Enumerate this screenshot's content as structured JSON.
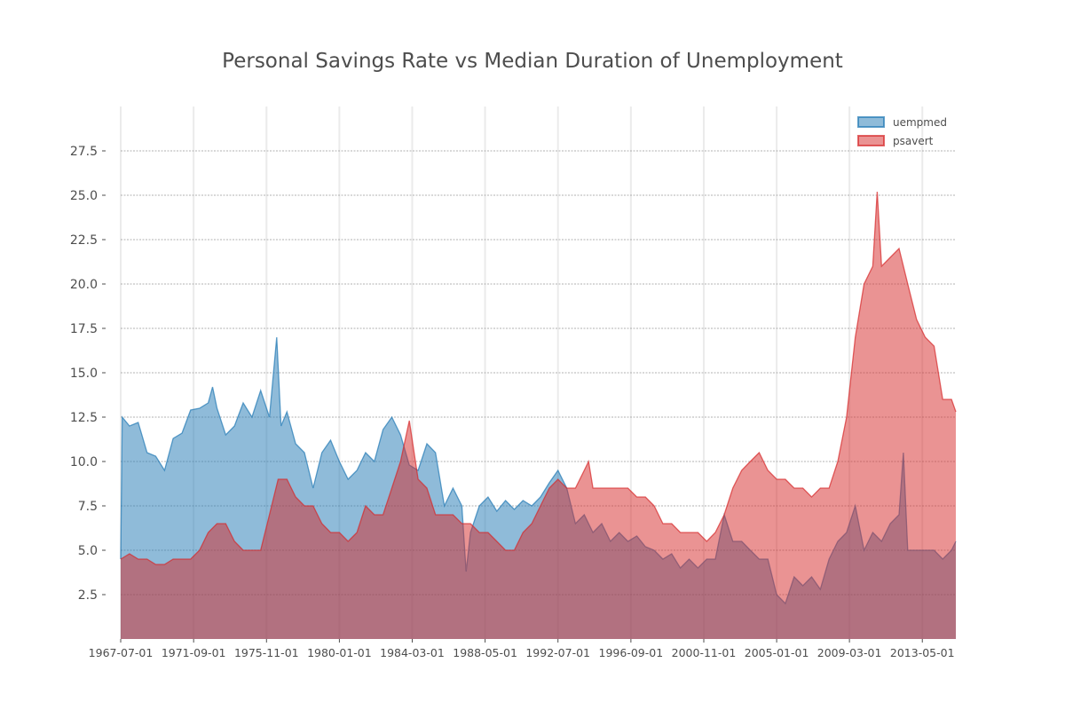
{
  "chart_data": {
    "type": "area",
    "title": "Personal Savings Rate vs Median Duration of Unemployment",
    "xlabel": "",
    "ylabel": "",
    "xlim": [
      "1967-07-01",
      "2015-04-01"
    ],
    "ylim": [
      0,
      30
    ],
    "grid": true,
    "legend_position": "top-right",
    "y_ticks": [
      2.5,
      5.0,
      7.5,
      10.0,
      12.5,
      15.0,
      17.5,
      20.0,
      22.5,
      25.0,
      27.5
    ],
    "y_tick_labels": [
      "2.5",
      "5.0",
      "7.5",
      "10.0",
      "12.5",
      "15.0",
      "17.5",
      "20.0",
      "22.5",
      "25.0",
      "27.5"
    ],
    "x_ticks": [
      "1967-07-01",
      "1971-09-01",
      "1975-11-01",
      "1980-01-01",
      "1984-03-01",
      "1988-05-01",
      "1992-07-01",
      "1996-09-01",
      "2000-11-01",
      "2005-01-01",
      "2009-03-01",
      "2013-05-01"
    ],
    "series": [
      {
        "name": "uempmed",
        "color": "#1f77b4",
        "points": [
          [
            "1967-07-01",
            4.5
          ],
          [
            "1967-08-01",
            12.5
          ],
          [
            "1968-01-01",
            12.0
          ],
          [
            "1968-07-01",
            12.2
          ],
          [
            "1969-01-01",
            10.5
          ],
          [
            "1969-07-01",
            10.3
          ],
          [
            "1970-01-01",
            9.5
          ],
          [
            "1970-07-01",
            11.3
          ],
          [
            "1971-01-01",
            11.6
          ],
          [
            "1971-07-01",
            12.9
          ],
          [
            "1972-01-01",
            13.0
          ],
          [
            "1972-07-01",
            13.3
          ],
          [
            "1972-10-01",
            14.2
          ],
          [
            "1973-01-01",
            13.0
          ],
          [
            "1973-07-01",
            11.5
          ],
          [
            "1974-01-01",
            12.0
          ],
          [
            "1974-07-01",
            13.3
          ],
          [
            "1975-01-01",
            12.5
          ],
          [
            "1975-07-01",
            14.0
          ],
          [
            "1976-01-01",
            12.5
          ],
          [
            "1976-06-01",
            17.0
          ],
          [
            "1976-09-01",
            12.0
          ],
          [
            "1977-01-01",
            12.8
          ],
          [
            "1977-07-01",
            11.0
          ],
          [
            "1978-01-01",
            10.5
          ],
          [
            "1978-07-01",
            8.5
          ],
          [
            "1979-01-01",
            10.5
          ],
          [
            "1979-07-01",
            11.2
          ],
          [
            "1980-01-01",
            10.0
          ],
          [
            "1980-07-01",
            9.0
          ],
          [
            "1981-01-01",
            9.5
          ],
          [
            "1981-07-01",
            10.5
          ],
          [
            "1982-01-01",
            10.0
          ],
          [
            "1982-07-01",
            11.8
          ],
          [
            "1983-01-01",
            12.5
          ],
          [
            "1983-07-01",
            11.5
          ],
          [
            "1984-01-01",
            9.8
          ],
          [
            "1984-07-01",
            9.5
          ],
          [
            "1985-01-01",
            11.0
          ],
          [
            "1985-07-01",
            10.5
          ],
          [
            "1986-01-01",
            7.5
          ],
          [
            "1986-07-01",
            8.5
          ],
          [
            "1987-01-01",
            7.5
          ],
          [
            "1987-04-01",
            3.8
          ],
          [
            "1987-07-01",
            6.0
          ],
          [
            "1988-01-01",
            7.5
          ],
          [
            "1988-07-01",
            8.0
          ],
          [
            "1989-01-01",
            7.2
          ],
          [
            "1989-07-01",
            7.8
          ],
          [
            "1990-01-01",
            7.3
          ],
          [
            "1990-07-01",
            7.8
          ],
          [
            "1991-01-01",
            7.5
          ],
          [
            "1991-07-01",
            8.0
          ],
          [
            "1992-01-01",
            8.8
          ],
          [
            "1992-07-01",
            9.5
          ],
          [
            "1993-01-01",
            8.5
          ],
          [
            "1993-07-01",
            6.5
          ],
          [
            "1994-01-01",
            7.0
          ],
          [
            "1994-07-01",
            6.0
          ],
          [
            "1995-01-01",
            6.5
          ],
          [
            "1995-07-01",
            5.5
          ],
          [
            "1996-01-01",
            6.0
          ],
          [
            "1996-07-01",
            5.5
          ],
          [
            "1997-01-01",
            5.8
          ],
          [
            "1997-07-01",
            5.2
          ],
          [
            "1998-01-01",
            5.0
          ],
          [
            "1998-07-01",
            4.5
          ],
          [
            "1999-01-01",
            4.8
          ],
          [
            "1999-07-01",
            4.0
          ],
          [
            "2000-01-01",
            4.5
          ],
          [
            "2000-07-01",
            4.0
          ],
          [
            "2001-01-01",
            4.5
          ],
          [
            "2001-07-01",
            4.5
          ],
          [
            "2002-01-01",
            7.0
          ],
          [
            "2002-07-01",
            5.5
          ],
          [
            "2003-01-01",
            5.5
          ],
          [
            "2003-07-01",
            5.0
          ],
          [
            "2004-01-01",
            4.5
          ],
          [
            "2004-07-01",
            4.5
          ],
          [
            "2005-01-01",
            2.5
          ],
          [
            "2005-07-01",
            2.0
          ],
          [
            "2006-01-01",
            3.5
          ],
          [
            "2006-07-01",
            3.0
          ],
          [
            "2007-01-01",
            3.5
          ],
          [
            "2007-07-01",
            2.8
          ],
          [
            "2008-01-01",
            4.5
          ],
          [
            "2008-07-01",
            5.5
          ],
          [
            "2009-01-01",
            6.0
          ],
          [
            "2009-07-01",
            7.5
          ],
          [
            "2010-01-01",
            5.0
          ],
          [
            "2010-07-01",
            6.0
          ],
          [
            "2011-01-01",
            5.5
          ],
          [
            "2011-07-01",
            6.5
          ],
          [
            "2012-01-01",
            7.0
          ],
          [
            "2012-04-01",
            10.5
          ],
          [
            "2012-07-01",
            5.0
          ],
          [
            "2013-01-01",
            5.0
          ],
          [
            "2013-07-01",
            5.0
          ],
          [
            "2014-01-01",
            5.0
          ],
          [
            "2014-07-01",
            4.5
          ],
          [
            "2015-01-01",
            5.0
          ],
          [
            "2015-04-01",
            5.5
          ]
        ]
      },
      {
        "name": "psavert",
        "color": "#d62728",
        "points": [
          [
            "1967-07-01",
            4.5
          ],
          [
            "1968-01-01",
            4.8
          ],
          [
            "1968-07-01",
            4.5
          ],
          [
            "1969-01-01",
            4.5
          ],
          [
            "1969-07-01",
            4.2
          ],
          [
            "1970-01-01",
            4.2
          ],
          [
            "1970-07-01",
            4.5
          ],
          [
            "1971-01-01",
            4.5
          ],
          [
            "1971-07-01",
            4.5
          ],
          [
            "1972-01-01",
            5.0
          ],
          [
            "1972-07-01",
            6.0
          ],
          [
            "1973-01-01",
            6.5
          ],
          [
            "1973-07-01",
            6.5
          ],
          [
            "1974-01-01",
            5.5
          ],
          [
            "1974-07-01",
            5.0
          ],
          [
            "1975-01-01",
            5.0
          ],
          [
            "1975-07-01",
            5.0
          ],
          [
            "1976-01-01",
            7.0
          ],
          [
            "1976-07-01",
            9.0
          ],
          [
            "1977-01-01",
            9.0
          ],
          [
            "1977-07-01",
            8.0
          ],
          [
            "1978-01-01",
            7.5
          ],
          [
            "1978-07-01",
            7.5
          ],
          [
            "1979-01-01",
            6.5
          ],
          [
            "1979-07-01",
            6.0
          ],
          [
            "1980-01-01",
            6.0
          ],
          [
            "1980-07-01",
            5.5
          ],
          [
            "1981-01-01",
            6.0
          ],
          [
            "1981-07-01",
            7.5
          ],
          [
            "1982-01-01",
            7.0
          ],
          [
            "1982-07-01",
            7.0
          ],
          [
            "1983-01-01",
            8.5
          ],
          [
            "1983-07-01",
            10.0
          ],
          [
            "1984-01-01",
            12.3
          ],
          [
            "1984-07-01",
            9.0
          ],
          [
            "1985-01-01",
            8.5
          ],
          [
            "1985-07-01",
            7.0
          ],
          [
            "1986-01-01",
            7.0
          ],
          [
            "1986-07-01",
            7.0
          ],
          [
            "1987-01-01",
            6.5
          ],
          [
            "1987-07-01",
            6.5
          ],
          [
            "1988-01-01",
            6.0
          ],
          [
            "1988-07-01",
            6.0
          ],
          [
            "1989-01-01",
            5.5
          ],
          [
            "1989-07-01",
            5.0
          ],
          [
            "1990-01-01",
            5.0
          ],
          [
            "1990-07-01",
            6.0
          ],
          [
            "1991-01-01",
            6.5
          ],
          [
            "1991-07-01",
            7.5
          ],
          [
            "1992-01-01",
            8.5
          ],
          [
            "1992-07-01",
            9.0
          ],
          [
            "1993-01-01",
            8.5
          ],
          [
            "1993-07-01",
            8.5
          ],
          [
            "1994-01-01",
            9.5
          ],
          [
            "1994-04-01",
            10.0
          ],
          [
            "1994-07-01",
            8.5
          ],
          [
            "1995-01-01",
            8.5
          ],
          [
            "1995-07-01",
            8.5
          ],
          [
            "1996-01-01",
            8.5
          ],
          [
            "1996-07-01",
            8.5
          ],
          [
            "1997-01-01",
            8.0
          ],
          [
            "1997-07-01",
            8.0
          ],
          [
            "1998-01-01",
            7.5
          ],
          [
            "1998-07-01",
            6.5
          ],
          [
            "1999-01-01",
            6.5
          ],
          [
            "1999-07-01",
            6.0
          ],
          [
            "2000-01-01",
            6.0
          ],
          [
            "2000-07-01",
            6.0
          ],
          [
            "2001-01-01",
            5.5
          ],
          [
            "2001-07-01",
            6.0
          ],
          [
            "2002-01-01",
            7.0
          ],
          [
            "2002-07-01",
            8.5
          ],
          [
            "2003-01-01",
            9.5
          ],
          [
            "2003-07-01",
            10.0
          ],
          [
            "2004-01-01",
            10.5
          ],
          [
            "2004-07-01",
            9.5
          ],
          [
            "2005-01-01",
            9.0
          ],
          [
            "2005-07-01",
            9.0
          ],
          [
            "2006-01-01",
            8.5
          ],
          [
            "2006-07-01",
            8.5
          ],
          [
            "2007-01-01",
            8.0
          ],
          [
            "2007-07-01",
            8.5
          ],
          [
            "2008-01-01",
            8.5
          ],
          [
            "2008-07-01",
            10.0
          ],
          [
            "2009-01-01",
            12.5
          ],
          [
            "2009-07-01",
            17.0
          ],
          [
            "2010-01-01",
            20.0
          ],
          [
            "2010-07-01",
            21.0
          ],
          [
            "2010-10-01",
            25.2
          ],
          [
            "2011-01-01",
            21.0
          ],
          [
            "2011-07-01",
            21.5
          ],
          [
            "2012-01-01",
            22.0
          ],
          [
            "2012-07-01",
            20.0
          ],
          [
            "2013-01-01",
            18.0
          ],
          [
            "2013-07-01",
            17.0
          ],
          [
            "2014-01-01",
            16.5
          ],
          [
            "2014-07-01",
            13.5
          ],
          [
            "2015-01-01",
            13.5
          ],
          [
            "2015-04-01",
            12.8
          ]
        ]
      }
    ]
  }
}
